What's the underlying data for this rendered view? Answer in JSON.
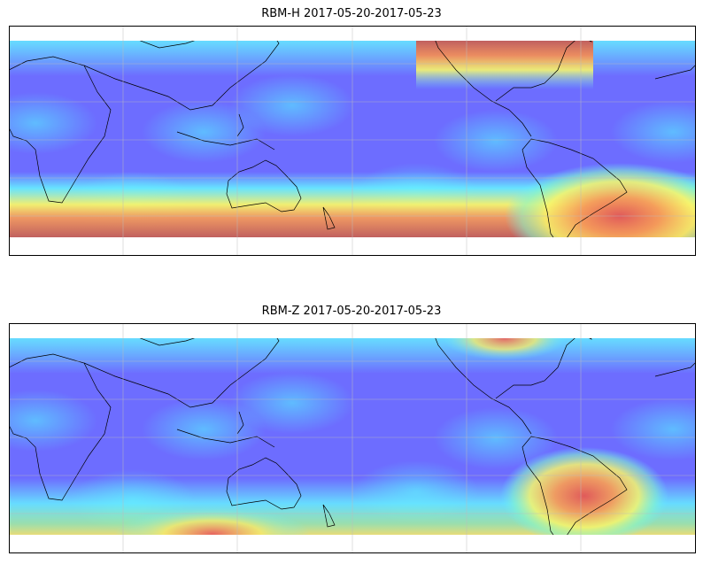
{
  "panels": [
    {
      "title": "RBM-H 2017-05-20-2017-05-23"
    },
    {
      "title": "RBM-Z 2017-05-20-2017-05-23"
    }
  ]
}
